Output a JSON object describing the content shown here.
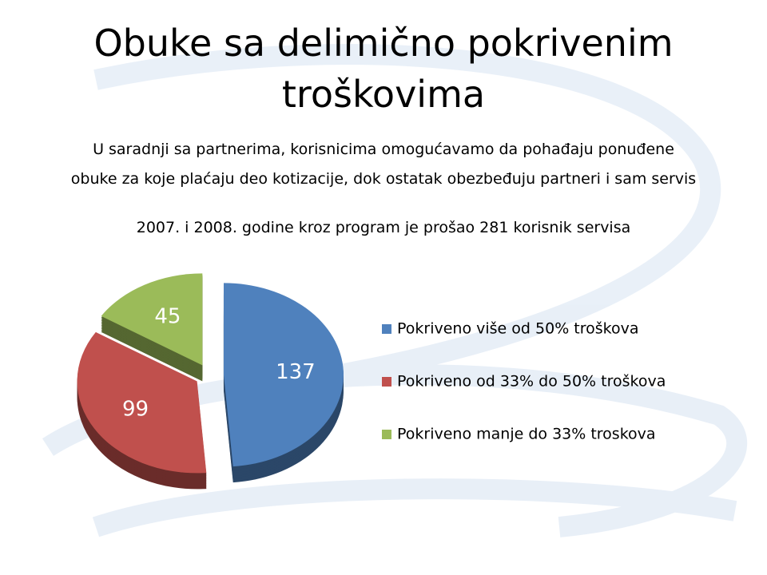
{
  "chart_data": {
    "type": "pie",
    "title": "Obuke sa delimično pokrivenim troškovima",
    "subtitle_lines": [
      "U saradnji sa partnerima, korisnicima omogućavamo da pohađaju ponuđene",
      "obuke za koje plaćaju deo kotizacije, dok ostatak obezbeđuju partneri i sam servis"
    ],
    "note": "2007. i 2008.  godine kroz program je prošao 281 korisnik servisa",
    "categories": [
      "Pokriveno više od 50% troškova",
      "Pokriveno od 33% do 50% troškova",
      "Pokriveno manje do 33% troskova"
    ],
    "values": [
      137,
      99,
      45
    ],
    "colors": [
      "#4f81bd",
      "#c0504d",
      "#9bbb59"
    ],
    "legend": "right"
  }
}
